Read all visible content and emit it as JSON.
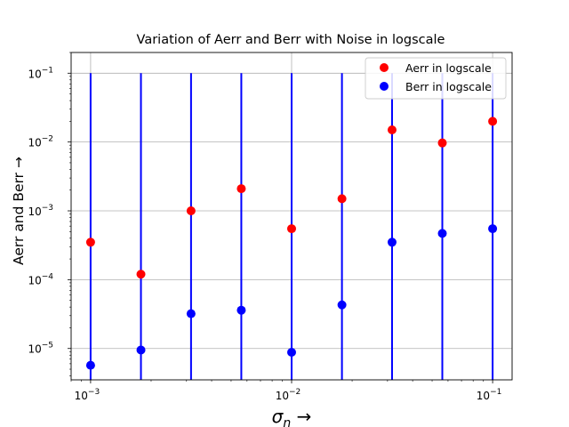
{
  "chart_data": {
    "type": "scatter",
    "title": "Variation of Aerr and Berr with Noise in logscale",
    "xlabel": "σn →",
    "ylabel": "Aerr and Berr →",
    "xscale": "log",
    "yscale": "log",
    "xlim": [
      0.0008,
      0.125
    ],
    "ylim": [
      3.5e-06,
      0.2
    ],
    "grid": true,
    "legend_position": "top-right",
    "x": [
      0.001,
      0.00178,
      0.00316,
      0.00562,
      0.01,
      0.0178,
      0.0316,
      0.0562,
      0.1
    ],
    "series": [
      {
        "name": "Aerr in logscale",
        "color": "#ff0000",
        "values": [
          0.00035,
          0.00012,
          0.001,
          0.0021,
          0.00055,
          0.0015,
          0.015,
          0.0097,
          0.02
        ]
      },
      {
        "name": "Berr in logscale",
        "color": "#0000ff",
        "values": [
          5.7e-06,
          9.5e-06,
          3.2e-05,
          3.6e-05,
          8.8e-06,
          4.3e-05,
          0.00035,
          0.00047,
          0.00055
        ]
      }
    ],
    "vlines": {
      "color": "#0000ff",
      "x": [
        0.001,
        0.00178,
        0.00316,
        0.00562,
        0.01,
        0.0178,
        0.0316,
        0.0562,
        0.1
      ],
      "ymax": 0.1
    },
    "x_ticks": [
      {
        "value": 0.001,
        "base": "10",
        "exp": "−3"
      },
      {
        "value": 0.01,
        "base": "10",
        "exp": "−2"
      },
      {
        "value": 0.1,
        "base": "10",
        "exp": "−1"
      }
    ],
    "y_ticks": [
      {
        "value": 1e-05,
        "base": "10",
        "exp": "−5"
      },
      {
        "value": 0.0001,
        "base": "10",
        "exp": "−4"
      },
      {
        "value": 0.001,
        "base": "10",
        "exp": "−3"
      },
      {
        "value": 0.01,
        "base": "10",
        "exp": "−2"
      },
      {
        "value": 0.1,
        "base": "10",
        "exp": "−1"
      }
    ]
  }
}
